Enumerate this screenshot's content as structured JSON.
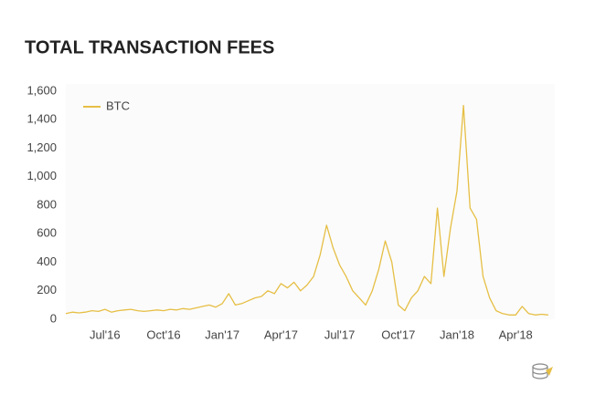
{
  "chart_data": {
    "type": "line",
    "title": "TOTAL TRANSACTION FEES",
    "categories": [
      null,
      null,
      null,
      null,
      null,
      null,
      "Jul'16",
      null,
      null,
      null,
      null,
      null,
      null,
      null,
      null,
      "Oct'16",
      null,
      null,
      null,
      null,
      null,
      null,
      null,
      null,
      "Jan'17",
      null,
      null,
      null,
      null,
      null,
      null,
      null,
      null,
      "Apr'17",
      null,
      null,
      null,
      null,
      null,
      null,
      null,
      null,
      "Jul'17",
      null,
      null,
      null,
      null,
      null,
      null,
      null,
      null,
      "Oct'17",
      null,
      null,
      null,
      null,
      null,
      null,
      null,
      null,
      "Jan'18",
      null,
      null,
      null,
      null,
      null,
      null,
      null,
      null,
      "Apr'18",
      null,
      null,
      null,
      null,
      null
    ],
    "series": [
      {
        "name": "BTC",
        "color": "#e6bf45",
        "values": [
          40,
          50,
          45,
          50,
          60,
          55,
          70,
          50,
          60,
          65,
          70,
          60,
          55,
          60,
          65,
          60,
          70,
          65,
          75,
          70,
          80,
          90,
          100,
          85,
          110,
          180,
          100,
          110,
          130,
          150,
          160,
          200,
          180,
          250,
          220,
          260,
          200,
          240,
          300,
          450,
          660,
          500,
          380,
          300,
          200,
          150,
          100,
          200,
          350,
          550,
          400,
          100,
          60,
          150,
          200,
          300,
          250,
          780,
          300,
          640,
          900,
          1500,
          780,
          700,
          300,
          150,
          60,
          40,
          30,
          30,
          90,
          40,
          30,
          35,
          30
        ]
      }
    ],
    "ylim": [
      0,
      1600
    ],
    "yticks": [
      0,
      200,
      400,
      600,
      800,
      {
        "value": 1000,
        "label": "1,000"
      },
      {
        "value": 1200,
        "label": "1,200"
      },
      {
        "value": 1400,
        "label": "1,400"
      },
      {
        "value": 1600,
        "label": "1,600"
      }
    ],
    "legend": "top-left"
  }
}
